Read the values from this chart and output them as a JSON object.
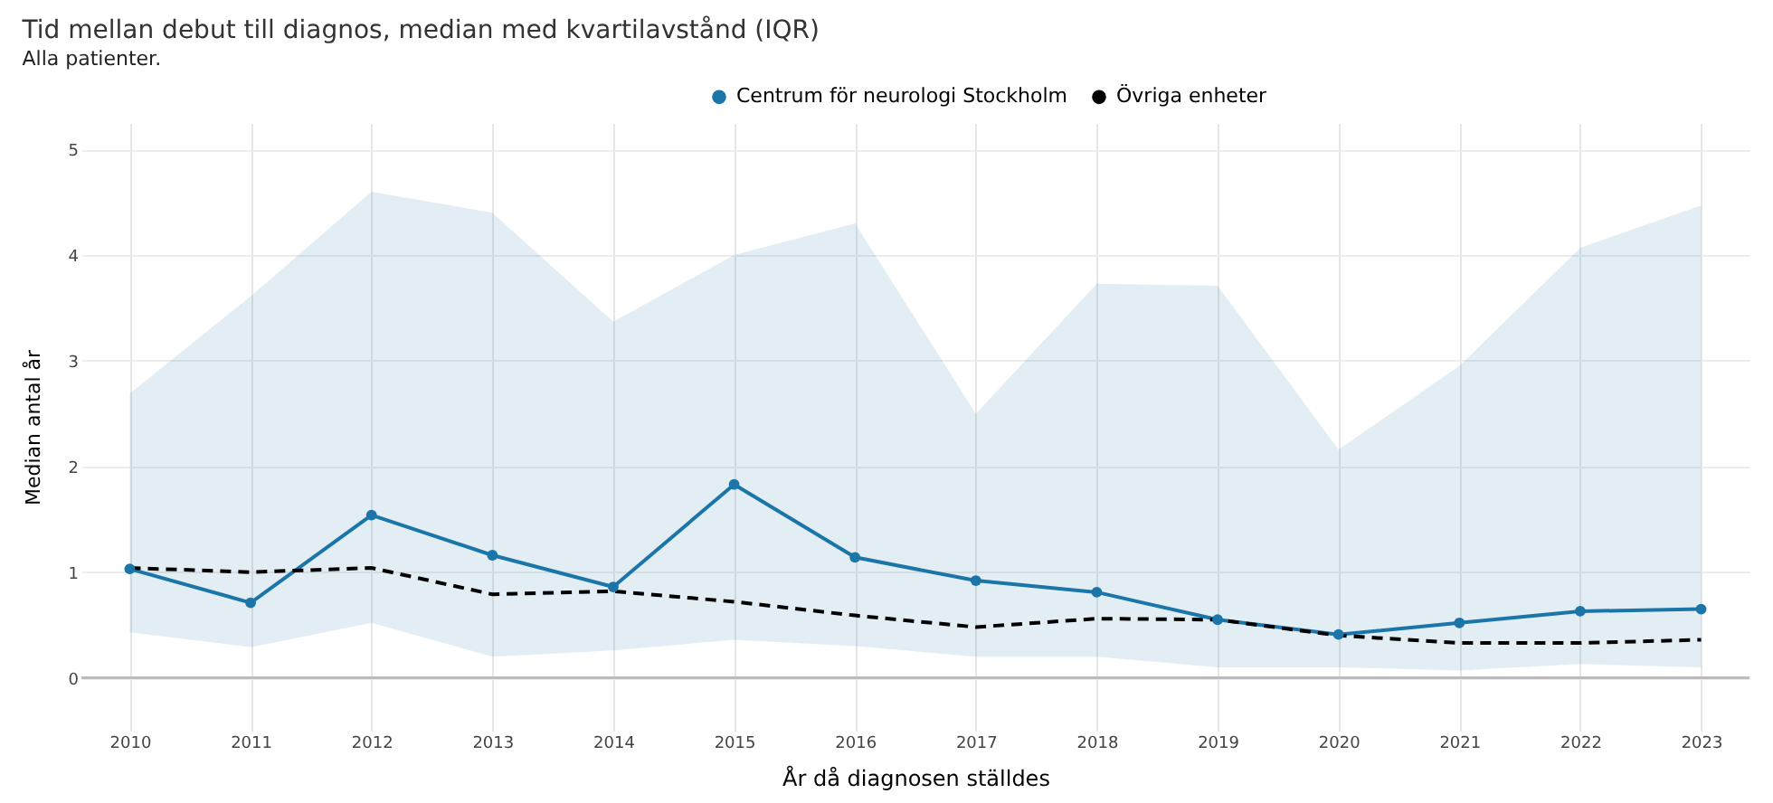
{
  "chart_data": {
    "type": "line",
    "title": "Tid mellan debut till diagnos, median med kvartilavstånd (IQR)",
    "subtitle": "Alla patienter.",
    "xlabel": "År då diagnosen ställdes",
    "ylabel": "Median antal år",
    "x": [
      2010,
      2011,
      2012,
      2013,
      2014,
      2015,
      2016,
      2017,
      2018,
      2019,
      2020,
      2021,
      2022,
      2023
    ],
    "series": [
      {
        "name": "Centrum för neurologi Stockholm",
        "color": "#1b75a8",
        "marker": "circle",
        "line_style": "solid",
        "values": [
          1.03,
          0.71,
          1.54,
          1.16,
          0.86,
          1.83,
          1.14,
          0.92,
          0.81,
          0.55,
          0.41,
          0.52,
          0.63,
          0.65
        ],
        "lower": [
          0.43,
          0.29,
          0.52,
          0.2,
          0.26,
          0.36,
          0.3,
          0.2,
          0.2,
          0.1,
          0.1,
          0.07,
          0.13,
          0.1
        ],
        "upper": [
          2.69,
          3.61,
          4.6,
          4.4,
          3.37,
          4.0,
          4.3,
          2.5,
          3.73,
          3.71,
          2.16,
          2.95,
          4.07,
          4.47
        ]
      },
      {
        "name": "Övriga enheter",
        "color": "#000000",
        "marker": "none",
        "line_style": "dashed",
        "values": [
          1.04,
          1.0,
          1.04,
          0.79,
          0.82,
          0.72,
          0.59,
          0.48,
          0.56,
          0.55,
          0.4,
          0.33,
          0.33,
          0.36
        ]
      }
    ],
    "xlim": [
      2009.6,
      2023.4
    ],
    "xticks": [
      2010,
      2011,
      2012,
      2013,
      2014,
      2015,
      2016,
      2017,
      2018,
      2019,
      2020,
      2021,
      2022,
      2023
    ],
    "ylim": [
      -0.5,
      5.25
    ],
    "yticks": [
      0,
      1,
      2,
      3,
      4,
      5
    ],
    "ref_lines": [
      {
        "axis": "y",
        "value": 0,
        "label": null,
        "color": "#bbbbbb"
      }
    ],
    "grid": true,
    "legend": "top"
  }
}
